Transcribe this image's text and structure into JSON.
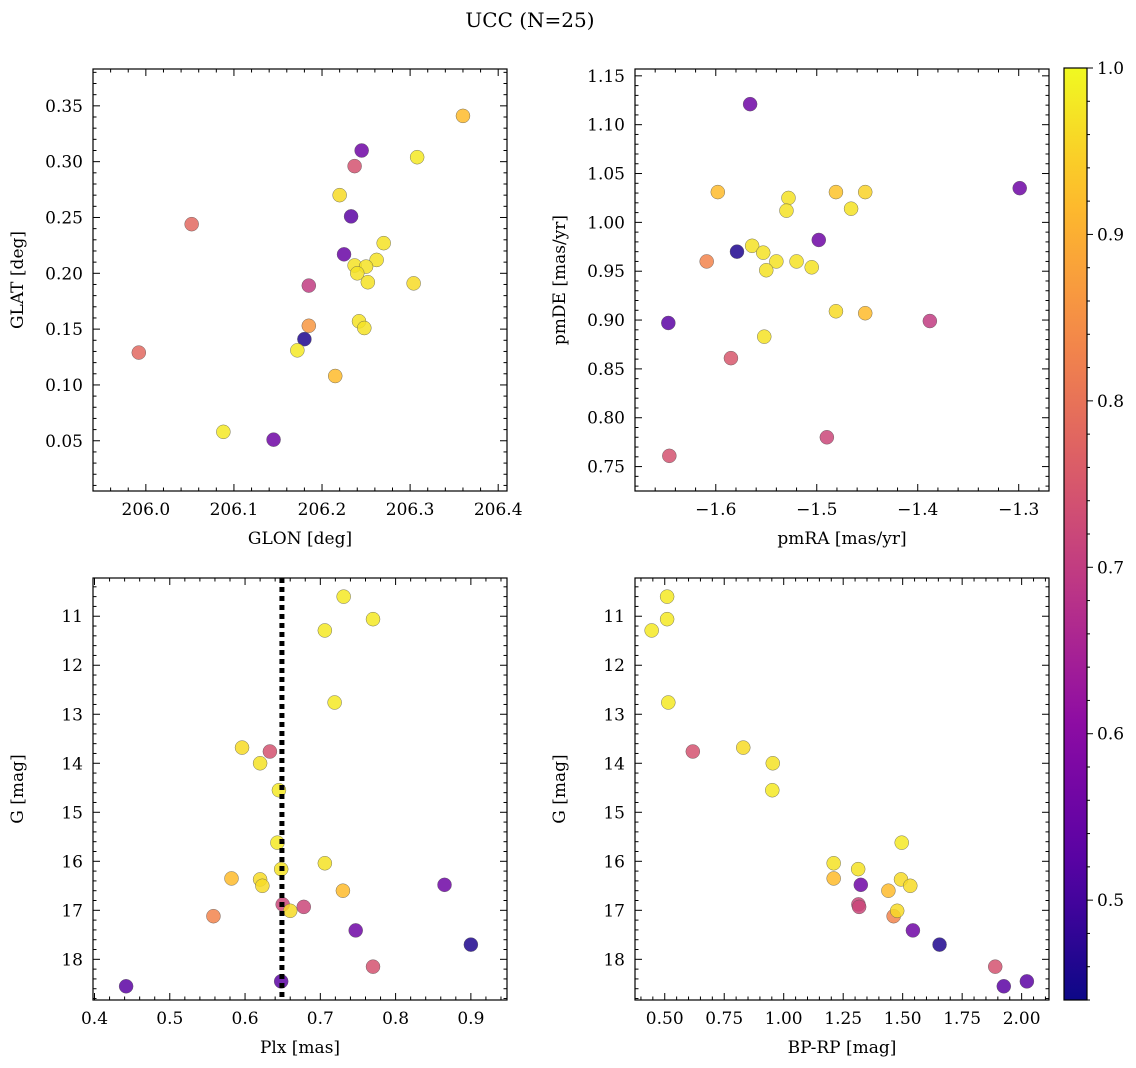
{
  "figure": {
    "title": "UCC (N=25)"
  },
  "colorbar": {
    "min": 0.44,
    "max": 1.0,
    "ticks": [
      0.5,
      0.6,
      0.7,
      0.8,
      0.9,
      1.0
    ],
    "tick_labels": [
      "0.5",
      "0.6",
      "0.7",
      "0.8",
      "0.9",
      "1.0"
    ],
    "colormap": "plasma"
  },
  "chart_data": [
    {
      "type": "scatter",
      "xlabel": "GLON [deg]",
      "ylabel": "GLAT [deg]",
      "xlim": [
        205.94,
        206.41
      ],
      "ylim": [
        0.005,
        0.383
      ],
      "xticks": [
        206.0,
        206.1,
        206.2,
        206.3,
        206.4
      ],
      "xtick_labels": [
        "206.0",
        "206.1",
        "206.2",
        "206.3",
        "206.4"
      ],
      "yticks": [
        0.05,
        0.1,
        0.15,
        0.2,
        0.25,
        0.3,
        0.35
      ],
      "ytick_labels": [
        "0.05",
        "0.10",
        "0.15",
        "0.20",
        "0.25",
        "0.30",
        "0.35"
      ],
      "invert_y": false,
      "x": [
        206.36,
        206.245,
        206.308,
        206.237,
        206.22,
        206.052,
        206.233,
        206.225,
        206.27,
        206.262,
        206.237,
        206.25,
        206.24,
        206.252,
        206.304,
        206.185,
        206.242,
        206.248,
        206.185,
        206.18,
        205.992,
        206.172,
        206.215,
        206.088,
        206.145
      ],
      "y": [
        0.341,
        0.31,
        0.304,
        0.296,
        0.27,
        0.244,
        0.251,
        0.217,
        0.227,
        0.212,
        0.207,
        0.206,
        0.2,
        0.192,
        0.191,
        0.189,
        0.157,
        0.151,
        0.153,
        0.141,
        0.129,
        0.131,
        0.108,
        0.058,
        0.051
      ],
      "c": [
        0.92,
        0.56,
        0.98,
        0.74,
        0.96,
        0.78,
        0.53,
        0.55,
        0.97,
        0.97,
        0.97,
        0.97,
        0.97,
        0.97,
        0.96,
        0.7,
        0.97,
        0.97,
        0.86,
        0.46,
        0.78,
        0.98,
        0.92,
        0.98,
        0.56
      ]
    },
    {
      "type": "scatter",
      "xlabel": "pmRA [mas/yr]",
      "ylabel": "pmDE [mas/yr]",
      "xlim": [
        -1.68,
        -1.27
      ],
      "ylim": [
        0.725,
        1.157
      ],
      "xticks": [
        -1.6,
        -1.5,
        -1.4,
        -1.3
      ],
      "xtick_labels": [
        "−1.6",
        "−1.5",
        "−1.4",
        "−1.3"
      ],
      "yticks": [
        0.75,
        0.8,
        0.85,
        0.9,
        0.95,
        1.0,
        1.05,
        1.1,
        1.15
      ],
      "ytick_labels": [
        "0.75",
        "0.80",
        "0.85",
        "0.90",
        "0.95",
        "1.00",
        "1.05",
        "1.10",
        "1.15"
      ],
      "invert_y": false,
      "x": [
        -1.566,
        -1.299,
        -1.598,
        -1.528,
        -1.481,
        -1.452,
        -1.466,
        -1.53,
        -1.498,
        -1.564,
        -1.579,
        -1.553,
        -1.54,
        -1.52,
        -1.505,
        -1.55,
        -1.609,
        -1.585,
        -1.481,
        -1.452,
        -1.388,
        -1.647,
        -1.552,
        -1.49,
        -1.646
      ],
      "y": [
        1.121,
        1.035,
        1.031,
        1.025,
        1.031,
        1.031,
        1.014,
        1.012,
        0.982,
        0.976,
        0.97,
        0.969,
        0.96,
        0.96,
        0.954,
        0.951,
        0.96,
        0.861,
        0.909,
        0.907,
        0.899,
        0.897,
        0.883,
        0.78,
        0.761
      ],
      "c": [
        0.56,
        0.56,
        0.92,
        0.97,
        0.93,
        0.95,
        0.97,
        0.97,
        0.56,
        0.97,
        0.46,
        0.97,
        0.97,
        0.97,
        0.97,
        0.97,
        0.83,
        0.75,
        0.96,
        0.92,
        0.7,
        0.53,
        0.97,
        0.72,
        0.74
      ]
    },
    {
      "type": "scatter",
      "xlabel": "Plx [mas]",
      "ylabel": "G [mag]",
      "xlim": [
        0.398,
        0.948
      ],
      "ylim": [
        18.83,
        10.22
      ],
      "xticks": [
        0.4,
        0.5,
        0.6,
        0.7,
        0.8,
        0.9
      ],
      "xtick_labels": [
        "0.4",
        "0.5",
        "0.6",
        "0.7",
        "0.8",
        "0.9"
      ],
      "yticks": [
        11,
        12,
        13,
        14,
        15,
        16,
        17,
        18
      ],
      "ytick_labels": [
        "11",
        "12",
        "13",
        "14",
        "15",
        "16",
        "17",
        "18"
      ],
      "invert_y": true,
      "vline": {
        "x": 0.649,
        "style": "dotted"
      },
      "x": [
        0.731,
        0.77,
        0.706,
        0.719,
        0.596,
        0.633,
        0.62,
        0.645,
        0.643,
        0.648,
        0.706,
        0.582,
        0.62,
        0.623,
        0.865,
        0.73,
        0.558,
        0.65,
        0.66,
        0.678,
        0.747,
        0.9,
        0.77,
        0.648,
        0.442
      ],
      "y": [
        10.6,
        11.06,
        11.29,
        12.76,
        13.68,
        13.76,
        14.0,
        14.55,
        15.62,
        16.16,
        16.04,
        16.35,
        16.37,
        16.5,
        16.48,
        16.6,
        17.12,
        16.88,
        17.01,
        16.93,
        17.41,
        17.7,
        18.15,
        18.45,
        18.55
      ],
      "c": [
        0.98,
        0.98,
        0.98,
        0.98,
        0.96,
        0.74,
        0.97,
        0.98,
        0.98,
        0.97,
        0.97,
        0.92,
        0.96,
        0.96,
        0.56,
        0.92,
        0.83,
        0.72,
        0.96,
        0.72,
        0.56,
        0.46,
        0.74,
        0.53,
        0.53
      ]
    },
    {
      "type": "scatter",
      "xlabel": "BP-RP [mag]",
      "ylabel": "G [mag]",
      "xlim": [
        0.375,
        2.115
      ],
      "ylim": [
        18.83,
        10.22
      ],
      "xticks": [
        0.5,
        0.75,
        1.0,
        1.25,
        1.5,
        1.75,
        2.0
      ],
      "xtick_labels": [
        "0.50",
        "0.75",
        "1.00",
        "1.25",
        "1.50",
        "1.75",
        "2.00"
      ],
      "yticks": [
        11,
        12,
        13,
        14,
        15,
        16,
        17,
        18
      ],
      "ytick_labels": [
        "11",
        "12",
        "13",
        "14",
        "15",
        "16",
        "17",
        "18"
      ],
      "invert_y": true,
      "x": [
        0.51,
        0.51,
        0.445,
        0.515,
        0.618,
        0.83,
        0.954,
        0.952,
        1.496,
        1.21,
        1.313,
        1.21,
        1.493,
        1.532,
        1.324,
        1.44,
        1.462,
        1.314,
        1.317,
        1.477,
        1.543,
        1.655,
        1.889,
        2.022,
        1.925
      ],
      "y": [
        10.6,
        11.06,
        11.29,
        12.76,
        13.76,
        13.68,
        14.0,
        14.55,
        15.62,
        16.04,
        16.16,
        16.35,
        16.37,
        16.5,
        16.48,
        16.6,
        17.12,
        16.88,
        16.93,
        17.01,
        17.41,
        17.7,
        18.15,
        18.45,
        18.55
      ],
      "c": [
        0.98,
        0.98,
        0.98,
        0.98,
        0.74,
        0.96,
        0.97,
        0.98,
        0.98,
        0.97,
        0.97,
        0.92,
        0.96,
        0.96,
        0.56,
        0.92,
        0.83,
        0.72,
        0.72,
        0.96,
        0.56,
        0.46,
        0.74,
        0.53,
        0.53
      ]
    }
  ]
}
